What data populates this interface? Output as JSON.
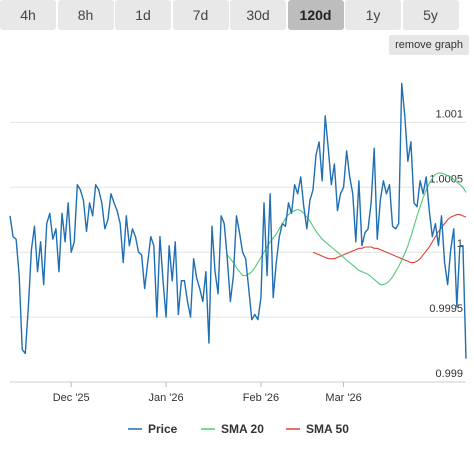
{
  "tabs": [
    {
      "label": "4h",
      "active": false
    },
    {
      "label": "8h",
      "active": false
    },
    {
      "label": "1d",
      "active": false
    },
    {
      "label": "7d",
      "active": false
    },
    {
      "label": "30d",
      "active": false
    },
    {
      "label": "120d",
      "active": true
    },
    {
      "label": "1y",
      "active": false
    },
    {
      "label": "5y",
      "active": false
    }
  ],
  "remove_graph_label": "remove graph",
  "chart_data": {
    "type": "line",
    "x_tick_labels": [
      "Dec '25",
      "Jan '26",
      "Feb '26",
      "Mar '26"
    ],
    "x_tick_index": [
      20,
      51,
      82,
      109
    ],
    "y_ticks": [
      0.999,
      0.9995,
      1,
      1.0005,
      1.001
    ],
    "y_tick_labels": [
      "0.999",
      "0.9995",
      "1",
      "1.0005",
      "1.001"
    ],
    "ylim": [
      0.999,
      1.00145
    ],
    "grid": true,
    "legend_position": "bottom",
    "series": [
      {
        "name": "Price",
        "color": "#1f6fb2",
        "values": [
          1.00028,
          1.00012,
          1.0001,
          0.99982,
          0.99925,
          0.99922,
          0.99958,
          1.00002,
          1.0002,
          0.99985,
          1.00008,
          0.99975,
          1.00022,
          1.0003,
          1.0001,
          1.00018,
          0.99985,
          1.0003,
          1.00008,
          1.00038,
          1.0,
          1.00008,
          1.00052,
          1.00048,
          1.0004,
          1.00016,
          1.00038,
          1.00028,
          1.00052,
          1.00048,
          1.00038,
          1.00018,
          1.00025,
          1.00045,
          1.00038,
          1.00032,
          1.00022,
          0.99992,
          1.00028,
          1.00005,
          1.00018,
          1.00012,
          1.0,
          0.99998,
          0.99972,
          0.99992,
          1.00012,
          1.00005,
          0.9995,
          1.00012,
          0.99978,
          0.9995,
          1.00005,
          0.99978,
          1.00008,
          0.99952,
          0.99978,
          0.99978,
          0.99962,
          0.9995,
          0.99995,
          0.9998,
          0.99972,
          0.99962,
          0.99985,
          0.9993,
          1.0002,
          0.99985,
          0.99968,
          1.00028,
          1.00022,
          0.99995,
          0.99962,
          0.99982,
          1.00028,
          1.00015,
          1.0,
          0.99995,
          0.99972,
          0.99948,
          0.99952,
          0.99948,
          0.99965,
          1.00038,
          0.99982,
          1.00045,
          0.99965,
          0.99992,
          1.00012,
          1.00022,
          1.0002,
          1.00038,
          1.0003,
          1.00052,
          1.00045,
          1.00058,
          1.00035,
          1.00018,
          1.0004,
          1.00048,
          1.00075,
          1.00085,
          1.00055,
          1.00105,
          1.0008,
          1.00052,
          1.00068,
          1.00032,
          1.00045,
          1.0005,
          1.00078,
          1.00058,
          1.00045,
          1.00008,
          1.00055,
          1.00005,
          1.00015,
          1.00018,
          1.00038,
          1.0008,
          1.0001,
          1.0004,
          1.00055,
          1.00045,
          1.00052,
          1.0002,
          1.00018,
          1.00022,
          1.0013,
          1.00105,
          1.0007,
          1.00085,
          1.00038,
          1.00035,
          1.00055,
          1.00045,
          1.00058,
          1.00032,
          1.00012,
          1.00022,
          1.00005,
          1.00028,
          0.99992,
          0.99975,
          1.00002,
          1.00018,
          0.99958,
          1.00005,
          1.00005,
          0.99918
        ]
      },
      {
        "name": "SMA 20",
        "color": "#4fc97a",
        "values": [
          0.99998,
          0.99995,
          0.99992,
          0.99988,
          0.99985,
          0.99982,
          0.99982,
          0.99983,
          0.99985,
          0.99988,
          0.99992,
          0.99996,
          1.0,
          1.00004,
          1.00008,
          1.00011,
          1.00014,
          1.00018,
          1.00022,
          1.00026,
          1.00029,
          1.00031,
          1.00032,
          1.00033,
          1.00032,
          1.0003,
          1.00027,
          1.00024,
          1.0002,
          1.00016,
          1.00013,
          1.0001,
          1.00008,
          1.00006,
          1.00004,
          1.00002,
          1.0,
          0.99998,
          0.99996,
          0.99994,
          0.99992,
          0.9999,
          0.99988,
          0.99986,
          0.99985,
          0.99984,
          0.99983,
          0.99981,
          0.99979,
          0.99977,
          0.99975,
          0.99975,
          0.99976,
          0.99978,
          0.99981,
          0.99985,
          0.99989,
          0.99994,
          0.99999,
          1.00005,
          1.00012,
          1.0002,
          1.00028,
          1.00035,
          1.00042,
          1.00048,
          1.00053,
          1.00057,
          1.0006,
          1.00061,
          1.00061,
          1.0006,
          1.00059,
          1.00058,
          1.00056,
          1.00054,
          1.00052,
          1.0005,
          1.00046
        ]
      },
      {
        "name": "SMA 50",
        "color": "#e0403a",
        "values": [
          1.0,
          0.99999,
          0.99998,
          0.99997,
          0.99996,
          0.99995,
          0.99995,
          0.99995,
          0.99996,
          0.99997,
          0.99998,
          0.99999,
          1.0,
          1.00001,
          1.00002,
          1.00003,
          1.00003,
          1.00004,
          1.00004,
          1.00004,
          1.00003,
          1.00003,
          1.00002,
          1.00001,
          1.0,
          0.99999,
          0.99998,
          0.99997,
          0.99996,
          0.99995,
          0.99994,
          0.99993,
          0.99992,
          0.99992,
          0.99993,
          0.99995,
          0.99998,
          1.00001,
          1.00004,
          1.00008,
          1.00012,
          1.00016,
          1.00019,
          1.00022,
          1.00025,
          1.00027,
          1.00028,
          1.00029,
          1.00029,
          1.00028,
          1.00027
        ]
      }
    ]
  }
}
